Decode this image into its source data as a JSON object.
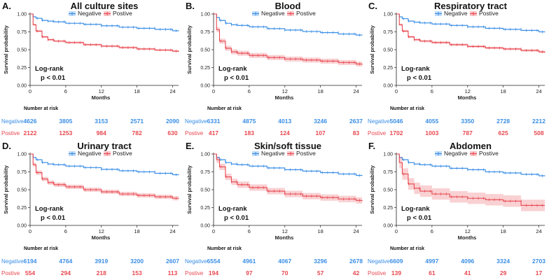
{
  "figure": {
    "risk_header": "Number at risk",
    "pvalue_line1": "Log-rank",
    "pvalue_line2": "p < 0.01"
  },
  "chart_data": [
    {
      "type": "line",
      "letter": "A.",
      "title": "All culture sites",
      "xlabel": "Months",
      "ylabel": "Survival probability",
      "xlim": [
        0,
        25
      ],
      "ylim": [
        0,
        1
      ],
      "xticks": [
        "0",
        "6",
        "12",
        "18",
        "24"
      ],
      "yticks": [
        "0.00",
        "0.25",
        "0.50",
        "0.75",
        "1.00"
      ],
      "legend": [
        {
          "name": "Negative"
        },
        {
          "name": "Postive"
        }
      ],
      "series": [
        {
          "name": "Negative",
          "color": "#3a8ee6",
          "ci": 0.008,
          "x": [
            0,
            0.5,
            1,
            2,
            3,
            4,
            6,
            9,
            12,
            15,
            18,
            21,
            24,
            25
          ],
          "y": [
            1.0,
            0.96,
            0.94,
            0.91,
            0.9,
            0.89,
            0.87,
            0.855,
            0.835,
            0.815,
            0.8,
            0.785,
            0.765,
            0.76
          ]
        },
        {
          "name": "Postive",
          "color": "#e8474f",
          "ci": 0.014,
          "x": [
            0,
            0.5,
            1,
            2,
            3,
            4,
            6,
            9,
            12,
            15,
            18,
            21,
            24,
            25
          ],
          "y": [
            1.0,
            0.85,
            0.76,
            0.68,
            0.64,
            0.62,
            0.6,
            0.57,
            0.55,
            0.53,
            0.51,
            0.495,
            0.48,
            0.47
          ]
        }
      ],
      "risk_table": {
        "negative_label": "Negative",
        "positive_label": "Postive",
        "negative": [
          "4626",
          "3805",
          "3153",
          "2571",
          "2090"
        ],
        "positive": [
          "2122",
          "1253",
          "984",
          "782",
          "630"
        ]
      }
    },
    {
      "type": "line",
      "letter": "B.",
      "title": "Blood",
      "xlabel": "Months",
      "ylabel": "Survival probability",
      "xlim": [
        0,
        25
      ],
      "ylim": [
        0,
        1
      ],
      "xticks": [
        "0",
        "6",
        "12",
        "18",
        "24"
      ],
      "yticks": [
        "0.00",
        "0.25",
        "0.50",
        "0.75",
        "1.00"
      ],
      "legend": [
        {
          "name": "Negative"
        },
        {
          "name": "Postive"
        }
      ],
      "series": [
        {
          "name": "Negative",
          "color": "#3a8ee6",
          "ci": 0.008,
          "x": [
            0,
            0.5,
            1,
            2,
            3,
            4,
            6,
            9,
            12,
            15,
            18,
            21,
            24,
            25
          ],
          "y": [
            1.0,
            0.95,
            0.91,
            0.87,
            0.85,
            0.84,
            0.82,
            0.795,
            0.775,
            0.755,
            0.74,
            0.72,
            0.705,
            0.7
          ]
        },
        {
          "name": "Postive",
          "color": "#e8474f",
          "ci": 0.035,
          "x": [
            0,
            0.5,
            1,
            2,
            3,
            4,
            6,
            9,
            12,
            15,
            18,
            21,
            24,
            25
          ],
          "y": [
            1.0,
            0.78,
            0.62,
            0.52,
            0.47,
            0.45,
            0.42,
            0.39,
            0.37,
            0.355,
            0.34,
            0.32,
            0.3,
            0.29
          ]
        }
      ],
      "risk_table": {
        "negative_label": "Negative",
        "positive_label": "Postive",
        "negative": [
          "6331",
          "4875",
          "4013",
          "3246",
          "2637"
        ],
        "positive": [
          "417",
          "183",
          "124",
          "107",
          "83"
        ]
      }
    },
    {
      "type": "line",
      "letter": "C.",
      "title": "Respiratory tract",
      "xlabel": "Months",
      "ylabel": "Survival probability",
      "xlim": [
        0,
        25
      ],
      "ylim": [
        0,
        1
      ],
      "xticks": [
        "0",
        "6",
        "12",
        "18",
        "24"
      ],
      "yticks": [
        "0.00",
        "0.25",
        "0.50",
        "0.75",
        "1.00"
      ],
      "legend": [
        {
          "name": "Negative"
        },
        {
          "name": "Postive"
        }
      ],
      "series": [
        {
          "name": "Negative",
          "color": "#3a8ee6",
          "ci": 0.008,
          "x": [
            0,
            0.5,
            1,
            2,
            3,
            4,
            6,
            9,
            12,
            15,
            18,
            21,
            24,
            25
          ],
          "y": [
            1.0,
            0.96,
            0.935,
            0.9,
            0.885,
            0.875,
            0.86,
            0.84,
            0.82,
            0.8,
            0.785,
            0.77,
            0.75,
            0.745
          ]
        },
        {
          "name": "Postive",
          "color": "#e8474f",
          "ci": 0.016,
          "x": [
            0,
            0.5,
            1,
            2,
            3,
            4,
            6,
            9,
            12,
            15,
            18,
            21,
            24,
            25
          ],
          "y": [
            1.0,
            0.85,
            0.76,
            0.68,
            0.64,
            0.62,
            0.6,
            0.57,
            0.545,
            0.525,
            0.51,
            0.49,
            0.47,
            0.46
          ]
        }
      ],
      "risk_table": {
        "negative_label": "Negative",
        "positive_label": "Postive",
        "negative": [
          "5046",
          "4055",
          "3350",
          "2728",
          "2212"
        ],
        "positive": [
          "1702",
          "1003",
          "787",
          "625",
          "508"
        ]
      }
    },
    {
      "type": "line",
      "letter": "D.",
      "title": "Urinary tract",
      "xlabel": "Months",
      "ylabel": "Survival probability",
      "xlim": [
        0,
        25
      ],
      "ylim": [
        0,
        1
      ],
      "xticks": [
        "0",
        "6",
        "12",
        "18",
        "24"
      ],
      "yticks": [
        "0.00",
        "0.25",
        "0.50",
        "0.75",
        "1.00"
      ],
      "legend": [
        {
          "name": "Negative"
        },
        {
          "name": "Postive"
        }
      ],
      "series": [
        {
          "name": "Negative",
          "color": "#3a8ee6",
          "ci": 0.008,
          "x": [
            0,
            0.5,
            1,
            2,
            3,
            4,
            6,
            9,
            12,
            15,
            18,
            21,
            24,
            25
          ],
          "y": [
            1.0,
            0.95,
            0.92,
            0.88,
            0.86,
            0.85,
            0.83,
            0.81,
            0.785,
            0.765,
            0.75,
            0.73,
            0.71,
            0.705
          ]
        },
        {
          "name": "Postive",
          "color": "#e8474f",
          "ci": 0.03,
          "x": [
            0,
            0.5,
            1,
            2,
            3,
            4,
            6,
            9,
            12,
            15,
            18,
            21,
            24,
            25
          ],
          "y": [
            1.0,
            0.85,
            0.74,
            0.65,
            0.6,
            0.57,
            0.54,
            0.5,
            0.47,
            0.44,
            0.42,
            0.4,
            0.38,
            0.375
          ]
        }
      ],
      "risk_table": {
        "negative_label": "Negative",
        "positive_label": "Postive",
        "negative": [
          "6194",
          "4764",
          "3919",
          "3200",
          "2607"
        ],
        "positive": [
          "554",
          "294",
          "218",
          "153",
          "113"
        ]
      }
    },
    {
      "type": "line",
      "letter": "E.",
      "title": "Skin/soft tissue",
      "xlabel": "Months",
      "ylabel": "Survival probability",
      "xlim": [
        0,
        25
      ],
      "ylim": [
        0,
        1
      ],
      "xticks": [
        "0",
        "6",
        "12",
        "18",
        "24"
      ],
      "yticks": [
        "0.00",
        "0.25",
        "0.50",
        "0.75",
        "1.00"
      ],
      "legend": [
        {
          "name": "Negative"
        },
        {
          "name": "Postive"
        }
      ],
      "series": [
        {
          "name": "Negative",
          "color": "#3a8ee6",
          "ci": 0.008,
          "x": [
            0,
            0.5,
            1,
            2,
            3,
            4,
            6,
            9,
            12,
            15,
            18,
            21,
            24,
            25
          ],
          "y": [
            1.0,
            0.95,
            0.92,
            0.88,
            0.86,
            0.85,
            0.83,
            0.805,
            0.78,
            0.76,
            0.74,
            0.72,
            0.7,
            0.695
          ]
        },
        {
          "name": "Postive",
          "color": "#e8474f",
          "ci": 0.045,
          "x": [
            0,
            0.5,
            1,
            2,
            3,
            4,
            6,
            9,
            12,
            15,
            18,
            21,
            24,
            25
          ],
          "y": [
            1.0,
            0.92,
            0.82,
            0.68,
            0.61,
            0.57,
            0.53,
            0.48,
            0.44,
            0.41,
            0.39,
            0.37,
            0.35,
            0.34
          ]
        }
      ],
      "risk_table": {
        "negative_label": "Negative",
        "positive_label": "Postive",
        "negative": [
          "6554",
          "4961",
          "4067",
          "3296",
          "2678"
        ],
        "positive": [
          "194",
          "97",
          "70",
          "57",
          "42"
        ]
      }
    },
    {
      "type": "line",
      "letter": "F.",
      "title": "Abdomen",
      "xlabel": "Months",
      "ylabel": "Survival probability",
      "xlim": [
        0,
        25
      ],
      "ylim": [
        0,
        1
      ],
      "xticks": [
        "0",
        "6",
        "12",
        "18",
        "24"
      ],
      "yticks": [
        "0.00",
        "0.25",
        "0.50",
        "0.75",
        "1.00"
      ],
      "legend": [
        {
          "name": "Negative"
        },
        {
          "name": "Postive"
        }
      ],
      "series": [
        {
          "name": "Negative",
          "color": "#3a8ee6",
          "ci": 0.008,
          "x": [
            0,
            0.5,
            1,
            2,
            3,
            4,
            6,
            9,
            12,
            15,
            18,
            21,
            24,
            25
          ],
          "y": [
            1.0,
            0.95,
            0.92,
            0.88,
            0.86,
            0.85,
            0.83,
            0.8,
            0.78,
            0.75,
            0.735,
            0.715,
            0.695,
            0.69
          ]
        },
        {
          "name": "Postive",
          "color": "#e8474f",
          "ci": 0.08,
          "x": [
            0,
            0.5,
            1,
            2,
            3,
            4,
            6,
            9,
            12,
            15,
            18,
            21,
            24,
            25
          ],
          "y": [
            1.0,
            0.88,
            0.72,
            0.58,
            0.52,
            0.48,
            0.44,
            0.4,
            0.38,
            0.36,
            0.34,
            0.28,
            0.28,
            0.28
          ]
        }
      ],
      "risk_table": {
        "negative_label": "Negative",
        "positive_label": "Postive",
        "negative": [
          "6609",
          "4997",
          "4096",
          "3324",
          "2703"
        ],
        "positive": [
          "139",
          "61",
          "41",
          "29",
          "17"
        ]
      }
    }
  ]
}
